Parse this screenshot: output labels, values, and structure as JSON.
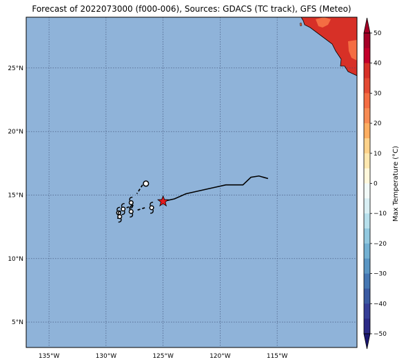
{
  "title": "Forecast of 2022073000 (f000-006), Sources: GDACS (TC track), GFS (Meteo)",
  "colors": {
    "ocean": "#8fb3d9",
    "land_hot": "#d73027",
    "land_warm": "#f46d43",
    "track": "#000000",
    "star": "#e41a1c"
  },
  "map": {
    "lon_ticks": [
      "135°W",
      "130°W",
      "125°W",
      "120°W",
      "115°W"
    ],
    "lat_ticks": [
      "25°N",
      "20°N",
      "15°N",
      "10°N",
      "5°N"
    ],
    "lon_values": [
      -135,
      -130,
      -125,
      -120,
      -115
    ],
    "lat_values": [
      25,
      20,
      15,
      10,
      5
    ],
    "lon_range": [
      -137,
      -108
    ],
    "lat_range": [
      3,
      29
    ],
    "current_position": {
      "lon": -125.0,
      "lat": 14.5
    },
    "track": [
      {
        "lon": -125.0,
        "lat": 14.5
      },
      {
        "lon": -124.0,
        "lat": 14.7
      },
      {
        "lon": -123.0,
        "lat": 15.1
      },
      {
        "lon": -120.5,
        "lat": 15.6
      },
      {
        "lon": -119.5,
        "lat": 15.8
      },
      {
        "lon": -118.0,
        "lat": 15.8
      },
      {
        "lon": -117.3,
        "lat": 16.4
      },
      {
        "lon": -116.6,
        "lat": 16.5
      },
      {
        "lon": -115.8,
        "lat": 16.3
      }
    ],
    "storm_symbols": [
      {
        "lon": -126.5,
        "lat": 15.9,
        "type": "low"
      },
      {
        "lon": -127.8,
        "lat": 14.4,
        "type": "storm"
      },
      {
        "lon": -126.0,
        "lat": 14.0,
        "type": "storm"
      },
      {
        "lon": -127.8,
        "lat": 13.7,
        "type": "storm"
      },
      {
        "lon": -128.5,
        "lat": 13.9,
        "type": "storm"
      },
      {
        "lon": -128.9,
        "lat": 13.6,
        "type": "storm"
      },
      {
        "lon": -128.8,
        "lat": 13.3,
        "type": "storm"
      }
    ],
    "dashed_segments": [
      [
        {
          "lon": -126.8,
          "lat": 15.8
        },
        {
          "lon": -127.3,
          "lat": 15.1
        }
      ],
      [
        {
          "lon": -127.6,
          "lat": 14.2
        },
        {
          "lon": -128.2,
          "lat": 14.0
        }
      ],
      [
        {
          "lon": -126.6,
          "lat": 14.0
        },
        {
          "lon": -127.3,
          "lat": 13.8
        }
      ]
    ]
  },
  "colorbar": {
    "label": "Max Temperature (°C)",
    "tick_labels": [
      "50",
      "40",
      "30",
      "20",
      "10",
      "0",
      "−10",
      "−20",
      "−30",
      "−40",
      "−50"
    ],
    "range": [
      -50,
      50
    ],
    "bands": [
      {
        "from": 45,
        "to": 50,
        "color": "#a50026"
      },
      {
        "from": 40,
        "to": 45,
        "color": "#c2002a"
      },
      {
        "from": 35,
        "to": 40,
        "color": "#d73027"
      },
      {
        "from": 30,
        "to": 35,
        "color": "#e34a33"
      },
      {
        "from": 25,
        "to": 30,
        "color": "#f46d43"
      },
      {
        "from": 20,
        "to": 25,
        "color": "#f78b53"
      },
      {
        "from": 15,
        "to": 20,
        "color": "#fdae61"
      },
      {
        "from": 10,
        "to": 15,
        "color": "#fdd28a"
      },
      {
        "from": 5,
        "to": 10,
        "color": "#fee8b0"
      },
      {
        "from": 0,
        "to": 5,
        "color": "#fff8dc"
      },
      {
        "from": -5,
        "to": 0,
        "color": "#f2faf8"
      },
      {
        "from": -10,
        "to": -5,
        "color": "#d9eff4"
      },
      {
        "from": -15,
        "to": -10,
        "color": "#b7e0ec"
      },
      {
        "from": -20,
        "to": -15,
        "color": "#92c9e0"
      },
      {
        "from": -25,
        "to": -20,
        "color": "#73b1d3"
      },
      {
        "from": -30,
        "to": -25,
        "color": "#5a96c4"
      },
      {
        "from": -35,
        "to": -30,
        "color": "#4577b3"
      },
      {
        "from": -40,
        "to": -35,
        "color": "#3a5aa2"
      },
      {
        "from": -45,
        "to": -40,
        "color": "#353e97"
      },
      {
        "from": -50,
        "to": -45,
        "color": "#2b2a86"
      }
    ],
    "top_extend_color": "#a50026",
    "bottom_extend_color": "#1a1770"
  }
}
